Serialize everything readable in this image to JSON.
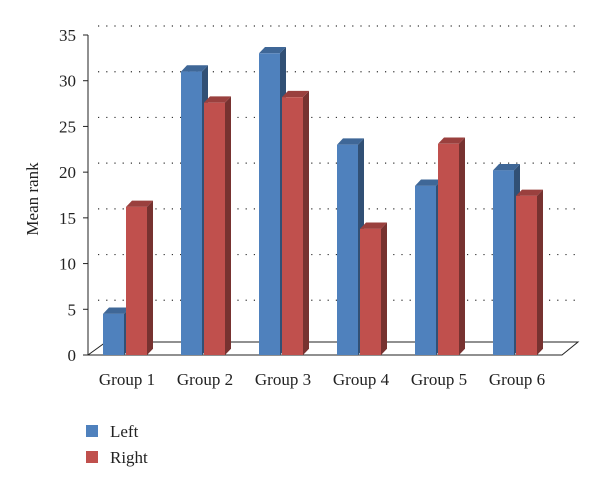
{
  "chart_data": {
    "type": "bar",
    "style": "3d-clustered-column",
    "title": "",
    "xlabel": "",
    "ylabel": "Mean rank",
    "ylim": [
      0,
      35
    ],
    "yticks": [
      0,
      5,
      10,
      15,
      20,
      25,
      30,
      35
    ],
    "grid": "dotted-horizontal",
    "legend_position": "bottom-left",
    "categories": [
      "Group 1",
      "Group 2",
      "Group 3",
      "Group 4",
      "Group 5",
      "Group 6"
    ],
    "series": [
      {
        "name": "Left",
        "color": "#4f81bd",
        "values": [
          4.5,
          31,
          33,
          23,
          18.5,
          20.2
        ]
      },
      {
        "name": "Right",
        "color": "#c0504d",
        "values": [
          16.2,
          27.6,
          28.2,
          13.8,
          23.1,
          17.4
        ]
      }
    ]
  }
}
